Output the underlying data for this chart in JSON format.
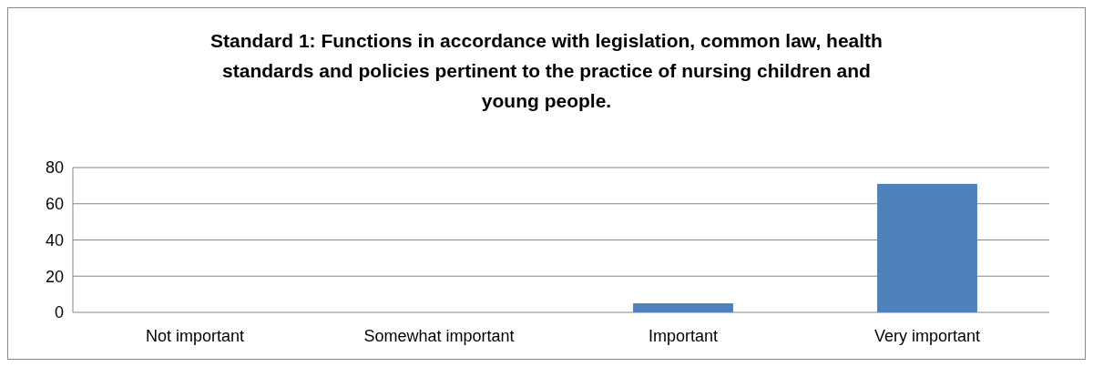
{
  "chart_data": {
    "type": "bar",
    "title": "Standard 1: Functions in accordance with legislation, common law, health standards and policies pertinent to the practice of nursing children and young people.",
    "categories": [
      "Not important",
      "Somewhat important",
      "Important",
      "Very important"
    ],
    "values": [
      0,
      0,
      5,
      71
    ],
    "color": "#4f81bd",
    "ylim": [
      0,
      80
    ],
    "yticks": [
      0,
      20,
      40,
      60,
      80
    ],
    "grid": "y"
  }
}
